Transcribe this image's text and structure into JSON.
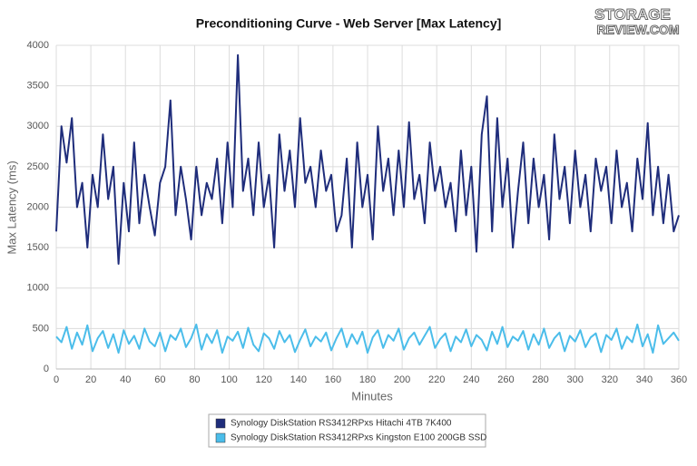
{
  "chart_data": {
    "type": "line",
    "title": "Preconditioning Curve - Web Server [Max Latency]",
    "logo": [
      "STORAGE",
      "REVIEW.COM"
    ],
    "x_label": "Minutes",
    "y_label": "Max Latency (ms)",
    "xlim": [
      0,
      360
    ],
    "xticks": [
      0,
      20,
      40,
      60,
      80,
      100,
      120,
      140,
      160,
      180,
      200,
      220,
      240,
      260,
      280,
      300,
      320,
      340,
      360
    ],
    "ylim": [
      0,
      4000
    ],
    "yticks": [
      0,
      500,
      1000,
      1500,
      2000,
      2500,
      3000,
      3500,
      4000
    ],
    "grid": true,
    "legend": "bottom",
    "x": [
      0,
      3,
      6,
      9,
      12,
      15,
      18,
      21,
      24,
      27,
      30,
      33,
      36,
      39,
      42,
      45,
      48,
      51,
      54,
      57,
      60,
      63,
      66,
      69,
      72,
      75,
      78,
      81,
      84,
      87,
      90,
      93,
      96,
      99,
      102,
      105,
      108,
      111,
      114,
      117,
      120,
      123,
      126,
      129,
      132,
      135,
      138,
      141,
      144,
      147,
      150,
      153,
      156,
      159,
      162,
      165,
      168,
      171,
      174,
      177,
      180,
      183,
      186,
      189,
      192,
      195,
      198,
      201,
      204,
      207,
      210,
      213,
      216,
      219,
      222,
      225,
      228,
      231,
      234,
      237,
      240,
      243,
      246,
      249,
      252,
      255,
      258,
      261,
      264,
      267,
      270,
      273,
      276,
      279,
      282,
      285,
      288,
      291,
      294,
      297,
      300,
      303,
      306,
      309,
      312,
      315,
      318,
      321,
      324,
      327,
      330,
      333,
      336,
      339,
      342,
      345,
      348,
      351,
      354,
      357,
      360
    ],
    "series": [
      {
        "name": "Synology DiskStation RS3412RPxs Hitachi 4TB 7K400",
        "color": "#1f2d7b",
        "values": [
          1700,
          3000,
          2550,
          3100,
          2000,
          2300,
          1500,
          2400,
          2000,
          2900,
          2100,
          2500,
          1300,
          2300,
          1700,
          2800,
          1800,
          2400,
          2000,
          1650,
          2300,
          2500,
          3320,
          1900,
          2500,
          2100,
          1600,
          2500,
          1900,
          2300,
          2100,
          2600,
          1800,
          2800,
          2000,
          3880,
          2200,
          2600,
          1900,
          2800,
          2000,
          2400,
          1500,
          2900,
          2200,
          2700,
          2000,
          3100,
          2300,
          2500,
          2000,
          2700,
          2200,
          2400,
          1700,
          1900,
          2600,
          1500,
          2800,
          2000,
          2400,
          1600,
          3000,
          2200,
          2600,
          1900,
          2700,
          2000,
          3050,
          2100,
          2400,
          1800,
          2800,
          2200,
          2500,
          2000,
          2300,
          1700,
          2700,
          1900,
          2500,
          1450,
          2900,
          3370,
          1700,
          3100,
          2000,
          2600,
          1500,
          2200,
          2800,
          1800,
          2600,
          2000,
          2400,
          1600,
          2900,
          2100,
          2500,
          1800,
          2700,
          2000,
          2400,
          1700,
          2600,
          2200,
          2500,
          1800,
          2700,
          2000,
          2300,
          1700,
          2600,
          2100,
          3040,
          1900,
          2500,
          1800,
          2400,
          1700,
          1900
        ]
      },
      {
        "name": "Synology DiskStation RS3412RPxs Kingston E100 200GB SSD",
        "color": "#4bbdea",
        "values": [
          400,
          330,
          520,
          250,
          450,
          300,
          540,
          220,
          380,
          470,
          260,
          430,
          200,
          480,
          310,
          410,
          250,
          500,
          340,
          280,
          450,
          220,
          420,
          360,
          500,
          270,
          380,
          550,
          240,
          430,
          320,
          480,
          200,
          400,
          350,
          460,
          260,
          510,
          300,
          220,
          440,
          380,
          250,
          470,
          330,
          420,
          210,
          360,
          490,
          280,
          400,
          340,
          450,
          230,
          380,
          500,
          270,
          430,
          310,
          460,
          200,
          390,
          480,
          260,
          420,
          350,
          500,
          240,
          380,
          450,
          300,
          410,
          520,
          260,
          370,
          440,
          220,
          400,
          330,
          490,
          280,
          420,
          360,
          230,
          460,
          310,
          520,
          270,
          400,
          350,
          470,
          240,
          430,
          300,
          500,
          260,
          380,
          450,
          220,
          410,
          340,
          480,
          270,
          390,
          440,
          210,
          420,
          360,
          500,
          250,
          400,
          330,
          550,
          280,
          430,
          200,
          540,
          310,
          380,
          450,
          350
        ]
      }
    ]
  }
}
